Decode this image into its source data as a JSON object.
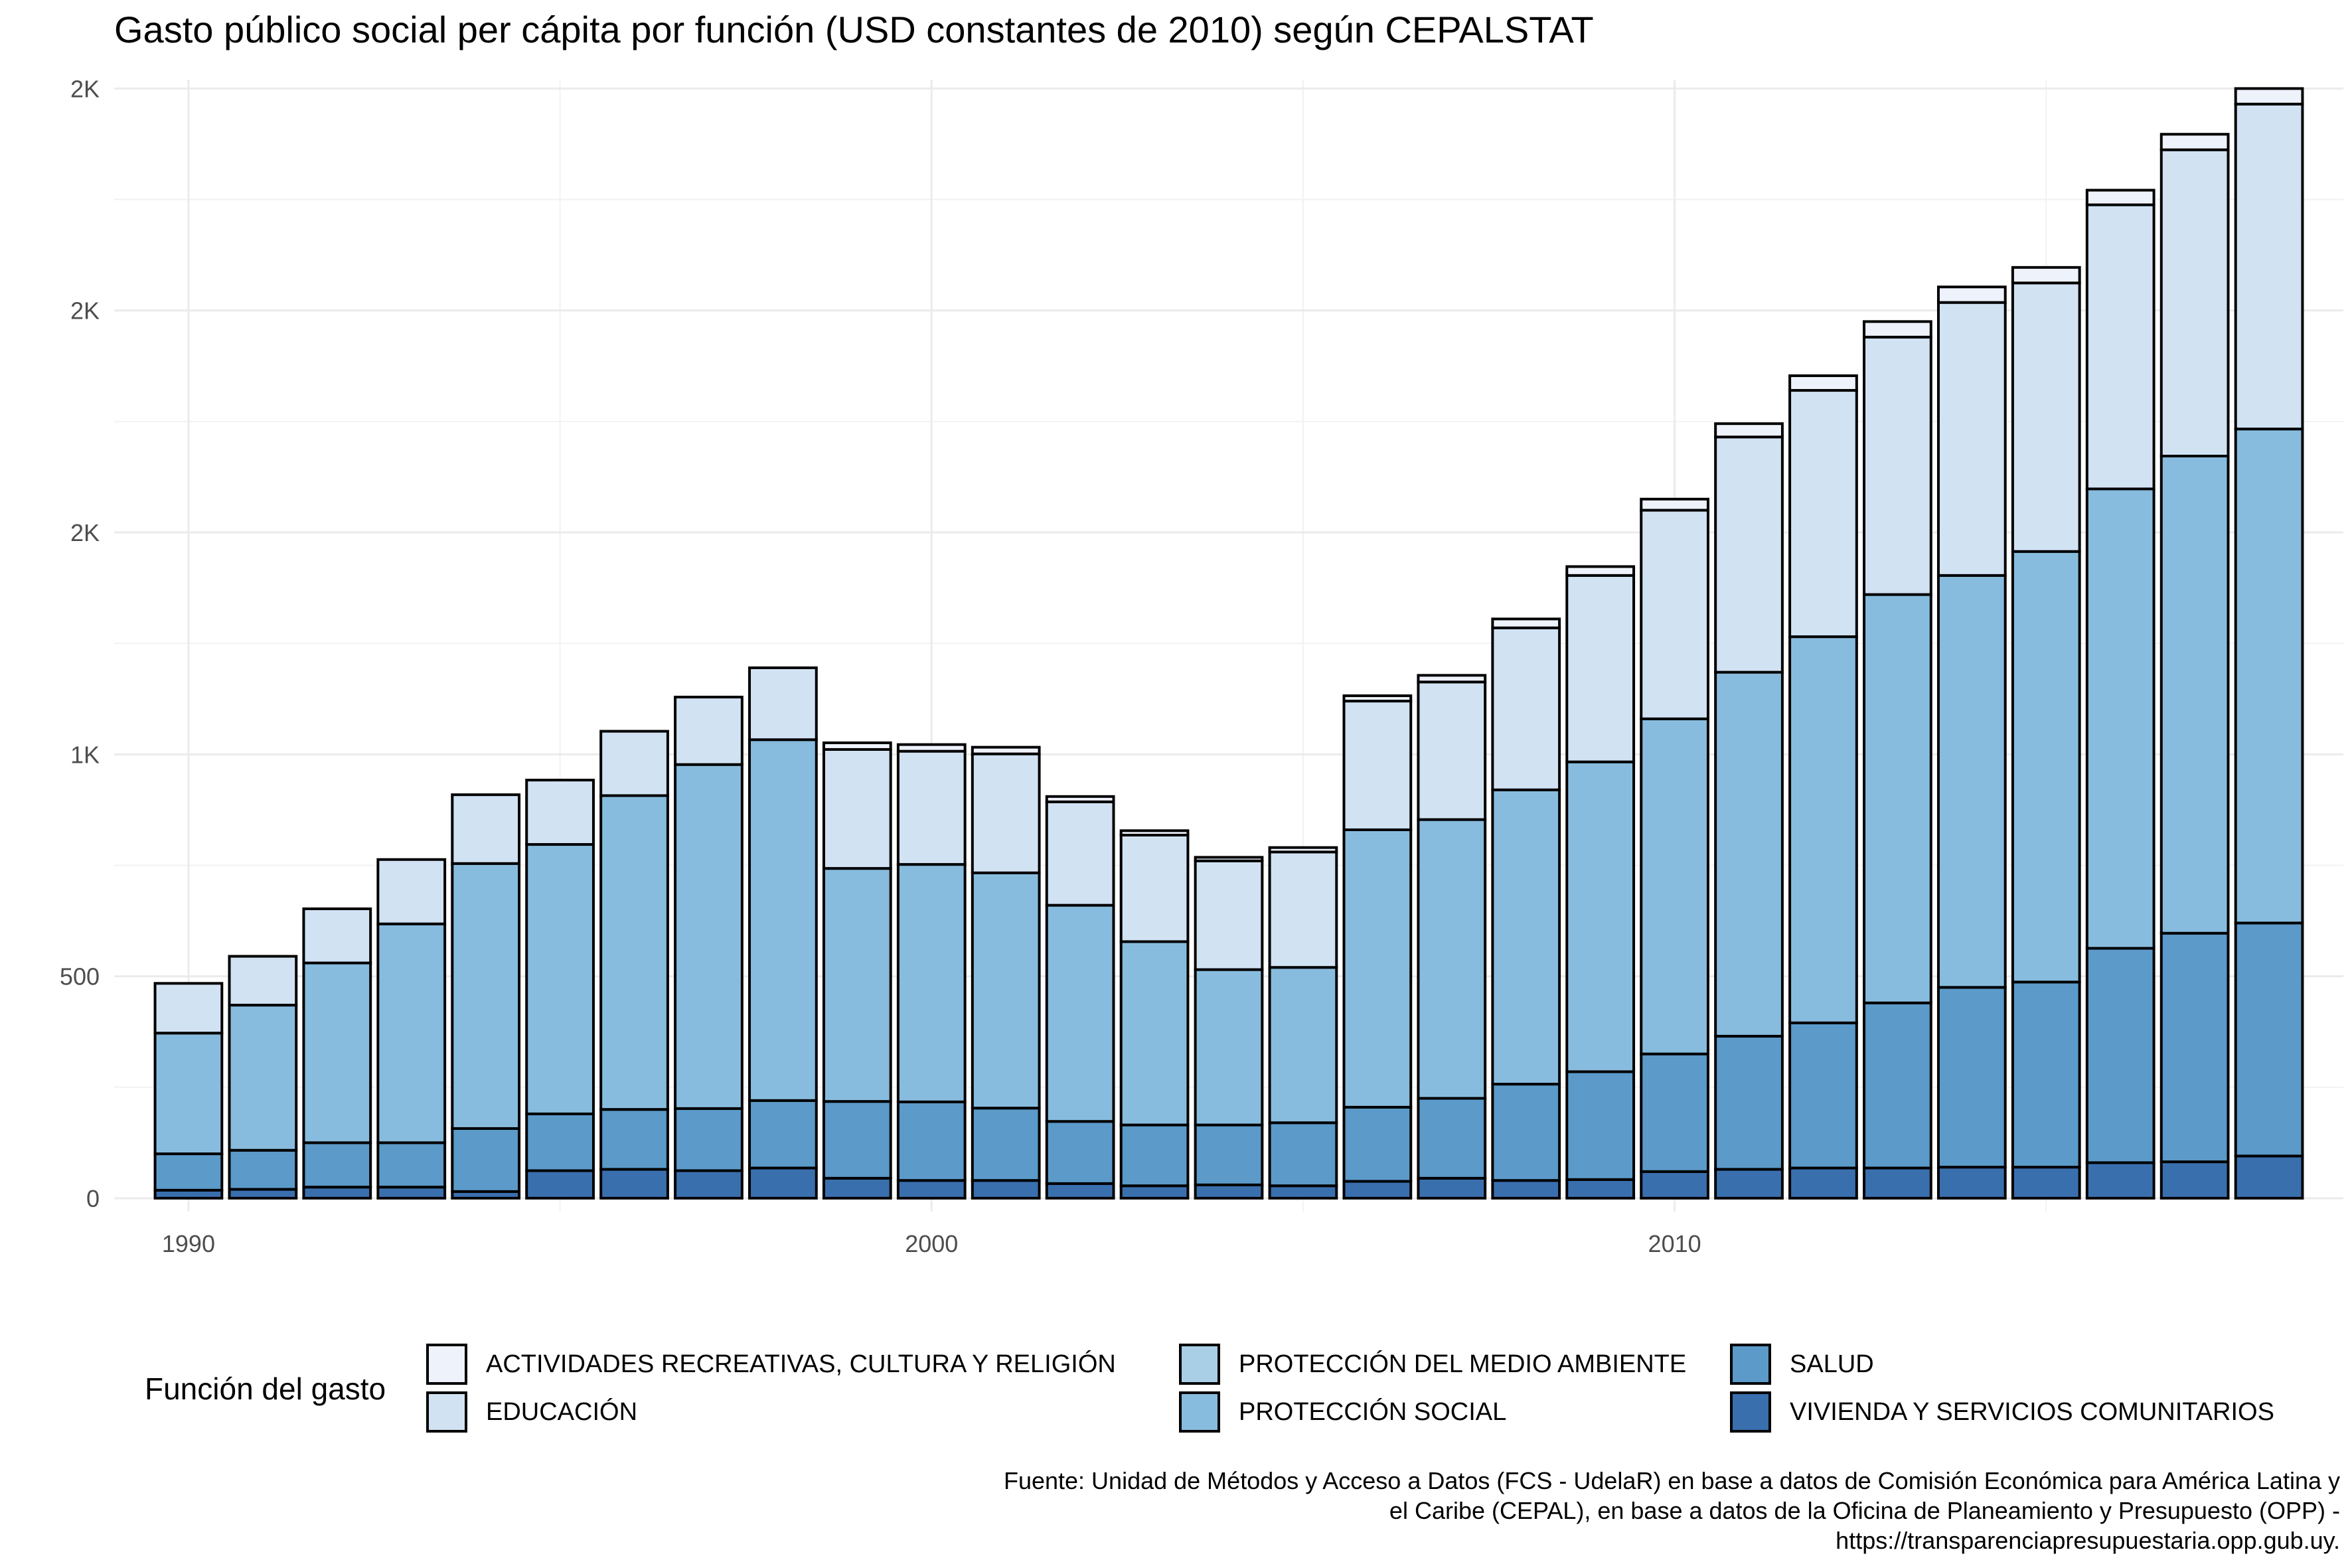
{
  "title": "Gasto público social per cápita por función (USD constantes de 2010) según CEPALSTAT",
  "legend": {
    "title": "Función del gasto"
  },
  "caption": [
    "Fuente: Unidad de Métodos y Acceso a Datos (FCS - UdelaR) en base a datos de Comisión Económica para América Latina y",
    "el Caribe (CEPAL), en base a datos de la Oficina de Planeamiento y Presupuesto (OPP) -",
    "https://transparenciapresupuestaria.opp.gub.uy."
  ],
  "chart_data": {
    "type": "bar",
    "stacked": true,
    "x": [
      1990,
      1991,
      1992,
      1993,
      1994,
      1995,
      1996,
      1997,
      1998,
      1999,
      2000,
      2001,
      2002,
      2003,
      2004,
      2005,
      2006,
      2007,
      2008,
      2009,
      2010,
      2011,
      2012,
      2013,
      2014,
      2015,
      2016,
      2017,
      2018
    ],
    "x_ticks": [
      1990,
      2000,
      2010
    ],
    "x_tick_labels": [
      "1990",
      "2000",
      "2010"
    ],
    "xlim": [
      1989.0,
      2019.0
    ],
    "ylim": [
      -30,
      2520
    ],
    "y_ticks": [
      0,
      500,
      1000,
      1500,
      2000,
      2500
    ],
    "y_tick_labels": [
      "0",
      "500",
      "1K",
      "2K",
      "2K",
      "2K"
    ],
    "grid": true,
    "legend_position": "bottom",
    "series": [
      {
        "name": "VIVIENDA Y SERVICIOS COMUNITARIOS",
        "color": "#3a6fae",
        "values": [
          18,
          20,
          25,
          25,
          15,
          62,
          65,
          62,
          68,
          45,
          40,
          40,
          33,
          28,
          30,
          28,
          38,
          45,
          40,
          42,
          60,
          65,
          68,
          68,
          70,
          70,
          80,
          82,
          95
        ]
      },
      {
        "name": "SALUD",
        "color": "#5b9ac9",
        "values": [
          82,
          88,
          100,
          100,
          142,
          128,
          135,
          140,
          152,
          173,
          177,
          163,
          140,
          137,
          135,
          142,
          167,
          180,
          217,
          243,
          265,
          300,
          327,
          372,
          405,
          417,
          483,
          515,
          525
        ]
      },
      {
        "name": "PROTECCIÓN DEL MEDIO AMBIENTE",
        "color": "#a9cfe6",
        "values": [
          0,
          0,
          0,
          0,
          0,
          0,
          0,
          0,
          0,
          0,
          0,
          0,
          0,
          0,
          0,
          0,
          0,
          0,
          0,
          0,
          0,
          0,
          0,
          0,
          0,
          0,
          0,
          0,
          0
        ]
      },
      {
        "name": "PROTECCIÓN SOCIAL",
        "color": "#88bcde",
        "values": [
          272,
          327,
          405,
          493,
          597,
          607,
          707,
          775,
          813,
          525,
          535,
          530,
          487,
          413,
          350,
          350,
          625,
          628,
          663,
          698,
          755,
          820,
          870,
          920,
          928,
          970,
          1035,
          1075,
          1113
        ]
      },
      {
        "name": "EDUCACIÓN",
        "color": "#d1e2f3",
        "values": [
          112,
          110,
          122,
          145,
          155,
          145,
          145,
          152,
          162,
          268,
          255,
          268,
          233,
          240,
          245,
          260,
          290,
          310,
          365,
          420,
          470,
          530,
          555,
          580,
          615,
          605,
          640,
          690,
          732
        ]
      },
      {
        "name": "ACTIVIDADES RECREATIVAS, CULTURA Y RELIGIÓN",
        "color": "#eef2fb",
        "values": [
          0,
          0,
          0,
          0,
          0,
          0,
          0,
          0,
          0,
          15,
          15,
          15,
          12,
          10,
          8,
          10,
          12,
          15,
          20,
          20,
          25,
          30,
          33,
          35,
          35,
          35,
          33,
          35,
          35
        ]
      }
    ]
  }
}
